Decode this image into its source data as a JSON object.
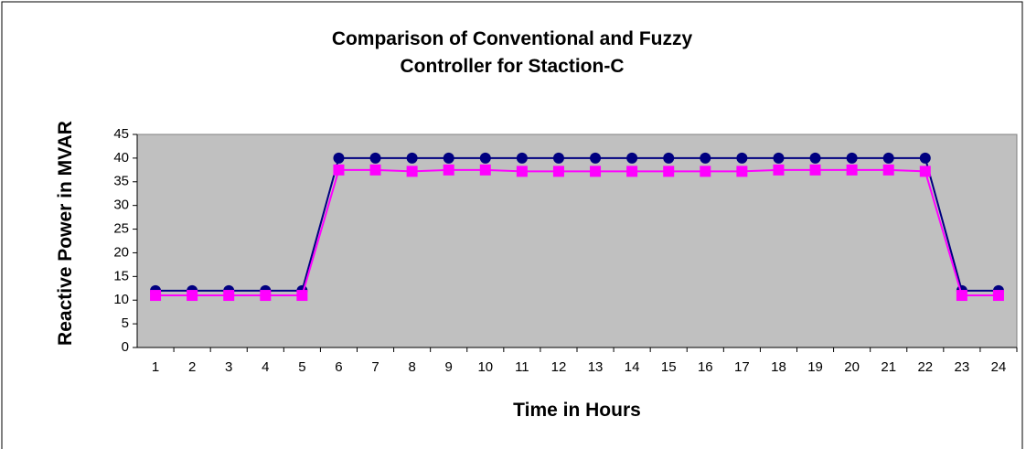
{
  "chart_data": {
    "type": "line",
    "title": "Comparison of Conventional and Fuzzy Controller for Staction-C",
    "x_label": "Time in Hours",
    "y_label": "Reactive Power in MVAR",
    "categories": [
      "1",
      "2",
      "3",
      "4",
      "5",
      "6",
      "7",
      "8",
      "9",
      "10",
      "11",
      "12",
      "13",
      "14",
      "15",
      "16",
      "17",
      "18",
      "19",
      "20",
      "21",
      "22",
      "23",
      "24"
    ],
    "series": [
      {
        "color": "#000080",
        "marker": "circle",
        "values": [
          12,
          12,
          12,
          12,
          12,
          40,
          40,
          40,
          40,
          40,
          40,
          40,
          40,
          40,
          40,
          40,
          40,
          40,
          40,
          40,
          40,
          40,
          12,
          12
        ]
      },
      {
        "color": "#ff00ff",
        "marker": "square",
        "values": [
          11,
          11,
          11,
          11,
          11,
          37.5,
          37.5,
          37.2,
          37.5,
          37.5,
          37.2,
          37.2,
          37.2,
          37.2,
          37.2,
          37.2,
          37.2,
          37.5,
          37.5,
          37.5,
          37.5,
          37.2,
          11,
          11
        ]
      }
    ],
    "ylim": [
      0,
      45
    ],
    "yticks": [
      0,
      5,
      10,
      15,
      20,
      25,
      30,
      35,
      40,
      45
    ],
    "grid": false
  }
}
